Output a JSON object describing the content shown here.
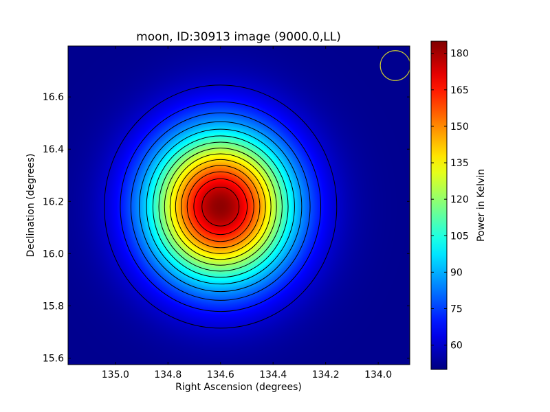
{
  "chart_data": {
    "type": "heatmap",
    "title": "moon, ID:30913 image (9000.0,LL)",
    "xlabel": "Right Ascension (degrees)",
    "ylabel": "Declination (degrees)",
    "colorbar_label": "Power in Kelvin",
    "xlim": [
      135.18,
      133.88
    ],
    "ylim": [
      15.575,
      16.795
    ],
    "x_ticks": [
      135.0,
      134.8,
      134.6,
      134.4,
      134.2,
      134.0
    ],
    "x_tick_labels": [
      "135.0",
      "134.8",
      "134.6",
      "134.4",
      "134.2",
      "134.0"
    ],
    "y_ticks": [
      15.6,
      15.8,
      16.0,
      16.2,
      16.4,
      16.6
    ],
    "y_tick_labels": [
      "15.6",
      "15.8",
      "16.0",
      "16.2",
      "16.4",
      "16.6"
    ],
    "colorbar_range": [
      50,
      185
    ],
    "colorbar_ticks": [
      60,
      75,
      90,
      105,
      120,
      135,
      150,
      165,
      180
    ],
    "colorbar_tick_labels": [
      "60",
      "75",
      "90",
      "105",
      "120",
      "135",
      "150",
      "165",
      "180"
    ],
    "colormap": "jet",
    "source_peak": {
      "ra": 134.6,
      "dec": 16.18,
      "value": 183
    },
    "background_level": 52,
    "beam_marker": {
      "ra": 133.935,
      "dec": 16.72,
      "radius_deg": 0.057,
      "color": "#c8c832"
    },
    "contour_count": 14,
    "contour_color": "#000000"
  }
}
